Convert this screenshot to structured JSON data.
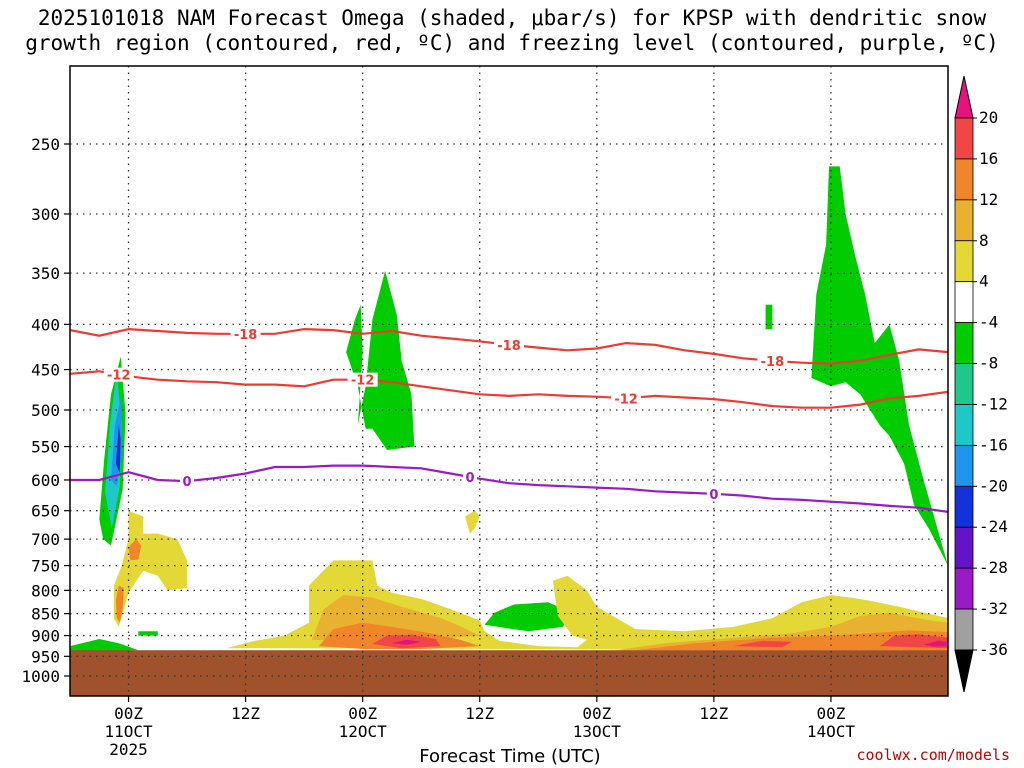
{
  "chart_data": {
    "type": "heatmap",
    "title_line1": "2025101018 NAM Forecast Omega (shaded, μbar/s) for KPSP with dendritic snow",
    "title_line2": "growth region (contoured, red, ºC) and freezing level (contoured, purple, ºC)",
    "xlabel": "Forecast Time (UTC)",
    "ylabel": "",
    "x_range_hours": [
      -6,
      84
    ],
    "x_ticks": [
      {
        "hour": 0,
        "l1": "00Z",
        "l2": "11OCT",
        "l3": "2025"
      },
      {
        "hour": 12,
        "l1": "12Z",
        "l2": "",
        "l3": ""
      },
      {
        "hour": 24,
        "l1": "00Z",
        "l2": "12OCT",
        "l3": ""
      },
      {
        "hour": 36,
        "l1": "12Z",
        "l2": "",
        "l3": ""
      },
      {
        "hour": 48,
        "l1": "00Z",
        "l2": "13OCT",
        "l3": ""
      },
      {
        "hour": 60,
        "l1": "12Z",
        "l2": "",
        "l3": ""
      },
      {
        "hour": 72,
        "l1": "00Z",
        "l2": "14OCT",
        "l3": ""
      }
    ],
    "y_ticks_hPa": [
      250,
      300,
      350,
      400,
      450,
      500,
      550,
      600,
      650,
      700,
      750,
      800,
      850,
      900,
      950,
      1000
    ],
    "surface_pressure_hPa": 935,
    "isotherms": [
      {
        "label": "-18",
        "color": "#ee3b2f",
        "hours": [
          -6,
          -3,
          0,
          3,
          6,
          9,
          12,
          15,
          18,
          21,
          24,
          27,
          30,
          33,
          36,
          39,
          42,
          45,
          48,
          51,
          54,
          57,
          60,
          63,
          66,
          69,
          72,
          75,
          78,
          81,
          84
        ],
        "pressure": [
          406,
          412,
          405,
          407,
          409,
          410,
          410,
          410,
          405,
          406,
          410,
          407,
          412,
          415,
          418,
          422,
          425,
          428,
          426,
          420,
          422,
          428,
          432,
          437,
          440,
          442,
          443,
          440,
          433,
          427,
          430
        ],
        "label_hours": [
          12,
          39,
          66
        ]
      },
      {
        "label": "-12",
        "color": "#ee3b2f",
        "hours": [
          -6,
          -3,
          0,
          3,
          6,
          9,
          12,
          15,
          18,
          21,
          24,
          27,
          30,
          33,
          36,
          39,
          42,
          45,
          48,
          51,
          54,
          57,
          60,
          63,
          66,
          69,
          72,
          75,
          78,
          81,
          84
        ],
        "pressure": [
          455,
          452,
          458,
          462,
          464,
          465,
          468,
          468,
          470,
          462,
          462,
          465,
          470,
          475,
          480,
          482,
          480,
          482,
          483,
          485,
          482,
          484,
          486,
          490,
          495,
          497,
          497,
          493,
          485,
          482,
          477
        ],
        "label_hours": [
          -1,
          24,
          51
        ]
      },
      {
        "label": "0",
        "color": "#9a1ac6",
        "hours": [
          -6,
          -3,
          0,
          3,
          6,
          9,
          12,
          15,
          18,
          21,
          24,
          27,
          30,
          33,
          36,
          39,
          42,
          45,
          48,
          51,
          54,
          57,
          60,
          63,
          66,
          69,
          72,
          75,
          78,
          81,
          84
        ],
        "pressure": [
          600,
          600,
          588,
          600,
          602,
          597,
          590,
          580,
          580,
          578,
          578,
          580,
          582,
          590,
          598,
          605,
          608,
          610,
          612,
          614,
          618,
          620,
          622,
          625,
          630,
          632,
          635,
          638,
          642,
          645,
          652
        ],
        "label_hours": [
          6,
          35,
          60
        ]
      }
    ],
    "omega_regions": [
      {
        "value": -6,
        "color": "#00cc00",
        "pts": [
          [
            -3,
            665
          ],
          [
            -2.5,
            570
          ],
          [
            -1.8,
            480
          ],
          [
            -0.8,
            435
          ],
          [
            -0.3,
            505
          ],
          [
            -0.6,
            615
          ],
          [
            -1.8,
            712
          ],
          [
            -2.6,
            700
          ]
        ]
      },
      {
        "value": -10,
        "color": "#1ec8c8",
        "pts": [
          [
            -2.4,
            620
          ],
          [
            -1.9,
            520
          ],
          [
            -1.2,
            452
          ],
          [
            -0.7,
            520
          ],
          [
            -0.9,
            610
          ],
          [
            -1.7,
            680
          ]
        ]
      },
      {
        "value": -14,
        "color": "#1e96f0",
        "pts": [
          [
            -1.8,
            600
          ],
          [
            -1.4,
            520
          ],
          [
            -0.8,
            485
          ],
          [
            -0.7,
            560
          ],
          [
            -1.2,
            610
          ]
        ]
      },
      {
        "value": -22,
        "color": "#1432dc",
        "pts": [
          [
            -1.3,
            575
          ],
          [
            -1.0,
            520
          ],
          [
            -0.8,
            540
          ],
          [
            -0.9,
            590
          ]
        ]
      },
      {
        "value": -6,
        "color": "#00cc00",
        "pts": [
          [
            22.3,
            430
          ],
          [
            23.2,
            395
          ],
          [
            23.8,
            380
          ],
          [
            24.0,
            430
          ],
          [
            23.5,
            520
          ],
          [
            24.3,
            470
          ],
          [
            25.0,
            395
          ],
          [
            26.3,
            348
          ],
          [
            27.5,
            390
          ],
          [
            28.0,
            440
          ],
          [
            29.0,
            480
          ],
          [
            29.3,
            550
          ],
          [
            26.5,
            555
          ],
          [
            25.0,
            525
          ],
          [
            24.3,
            525
          ],
          [
            23.5,
            470
          ]
        ]
      },
      {
        "value": -6,
        "color": "#00cc00",
        "pts": [
          [
            70.0,
            460
          ],
          [
            70.5,
            370
          ],
          [
            71.5,
            325
          ],
          [
            71.8,
            265
          ],
          [
            72.9,
            265
          ],
          [
            73.5,
            300
          ],
          [
            74.5,
            335
          ],
          [
            75.5,
            370
          ],
          [
            76.5,
            420
          ],
          [
            78.0,
            400
          ],
          [
            79.0,
            440
          ],
          [
            80.0,
            520
          ],
          [
            81.5,
            600
          ],
          [
            84.0,
            750
          ],
          [
            82.0,
            680
          ],
          [
            80.5,
            640
          ],
          [
            79.5,
            575
          ],
          [
            78.0,
            535
          ],
          [
            77.0,
            520
          ],
          [
            75.0,
            480
          ],
          [
            73.5,
            465
          ],
          [
            72.0,
            470
          ]
        ]
      },
      {
        "value": -6,
        "color": "#00cc00",
        "pts": [
          [
            65.3,
            380
          ],
          [
            66.0,
            380
          ],
          [
            66.0,
            405
          ],
          [
            65.3,
            405
          ]
        ]
      },
      {
        "value": -6,
        "color": "#00cc00",
        "pts": [
          [
            36.5,
            875
          ],
          [
            37.5,
            848
          ],
          [
            39.5,
            830
          ],
          [
            43.0,
            825
          ],
          [
            45.5,
            848
          ],
          [
            44.5,
            880
          ],
          [
            41.0,
            890
          ],
          [
            38.5,
            882
          ]
        ]
      },
      {
        "value": -6,
        "color": "#00cc00",
        "pts": [
          [
            -6,
            925
          ],
          [
            -3,
            908
          ],
          [
            -1,
            918
          ],
          [
            1,
            935
          ],
          [
            -6,
            940
          ]
        ]
      },
      {
        "value": -6,
        "color": "#00cc00",
        "pts": [
          [
            1,
            890
          ],
          [
            3,
            890
          ],
          [
            3,
            900
          ],
          [
            1,
            900
          ]
        ]
      },
      {
        "value": 6,
        "color": "#e4d836",
        "pts": [
          [
            -1.5,
            860
          ],
          [
            -1.5,
            790
          ],
          [
            -0.7,
            750
          ],
          [
            0.0,
            700
          ],
          [
            0.0,
            650
          ],
          [
            1.5,
            660
          ],
          [
            1.5,
            690
          ],
          [
            3.0,
            690
          ],
          [
            5.0,
            700
          ],
          [
            6.0,
            740
          ],
          [
            6.0,
            795
          ],
          [
            4.0,
            800
          ],
          [
            3.0,
            770
          ],
          [
            1.5,
            760
          ],
          [
            0.0,
            805
          ],
          [
            -1.0,
            880
          ]
        ]
      },
      {
        "value": 6,
        "color": "#e4d836",
        "pts": [
          [
            34.5,
            660
          ],
          [
            35.5,
            650
          ],
          [
            36.0,
            660
          ],
          [
            35.5,
            680
          ],
          [
            35.0,
            690
          ]
        ]
      },
      {
        "value": 6,
        "color": "#e4d836",
        "pts": [
          [
            10,
            930
          ],
          [
            13,
            912
          ],
          [
            16,
            900
          ],
          [
            18.5,
            870
          ],
          [
            18.5,
            790
          ],
          [
            21.0,
            740
          ],
          [
            25.0,
            740
          ],
          [
            25.5,
            790
          ],
          [
            27.0,
            805
          ],
          [
            30.0,
            818
          ],
          [
            33.0,
            840
          ],
          [
            36.0,
            865
          ],
          [
            36.5,
            890
          ],
          [
            38.0,
            912
          ],
          [
            42.0,
            925
          ],
          [
            46.0,
            928
          ],
          [
            47.0,
            910
          ],
          [
            45.5,
            900
          ],
          [
            44.0,
            855
          ],
          [
            43.5,
            780
          ],
          [
            45.0,
            770
          ],
          [
            47.0,
            800
          ],
          [
            48.0,
            835
          ],
          [
            50.0,
            860
          ],
          [
            52.0,
            885
          ],
          [
            57.0,
            890
          ],
          [
            62.0,
            880
          ],
          [
            66.0,
            860
          ],
          [
            69.0,
            825
          ],
          [
            72.0,
            810
          ],
          [
            74.0,
            815
          ],
          [
            76.0,
            822
          ],
          [
            79.0,
            835
          ],
          [
            82.0,
            850
          ],
          [
            84.0,
            860
          ],
          [
            84.0,
            935
          ]
        ]
      },
      {
        "value": 10,
        "color": "#e8b230",
        "pts": [
          [
            18.8,
            910
          ],
          [
            20.0,
            840
          ],
          [
            22.0,
            810
          ],
          [
            25.0,
            815
          ],
          [
            28.0,
            835
          ],
          [
            32.0,
            860
          ],
          [
            34.0,
            878
          ],
          [
            36.0,
            900
          ],
          [
            30.0,
            910
          ],
          [
            24.0,
            915
          ]
        ]
      },
      {
        "value": 10,
        "color": "#e8b230",
        "pts": [
          [
            50.0,
            935
          ],
          [
            55.0,
            918
          ],
          [
            62.0,
            905
          ],
          [
            68.0,
            895
          ],
          [
            72.0,
            880
          ],
          [
            75.0,
            855
          ],
          [
            78.0,
            848
          ],
          [
            82.0,
            865
          ],
          [
            84.0,
            870
          ],
          [
            84.0,
            935
          ]
        ]
      },
      {
        "value": 14,
        "color": "#f0852a",
        "pts": [
          [
            -1.2,
            860
          ],
          [
            -1.3,
            820
          ],
          [
            -1.0,
            790
          ],
          [
            -0.5,
            795
          ],
          [
            -0.6,
            840
          ],
          [
            -0.9,
            870
          ]
        ]
      },
      {
        "value": 14,
        "color": "#f0852a",
        "pts": [
          [
            0.0,
            715
          ],
          [
            0.8,
            700
          ],
          [
            1.3,
            712
          ],
          [
            1.0,
            738
          ],
          [
            0.2,
            740
          ]
        ]
      },
      {
        "value": 14,
        "color": "#f0852a",
        "pts": [
          [
            19.5,
            925
          ],
          [
            21.0,
            885
          ],
          [
            24.0,
            870
          ],
          [
            27.0,
            880
          ],
          [
            31.0,
            895
          ],
          [
            34.0,
            910
          ],
          [
            36.0,
            925
          ],
          [
            30.0,
            932
          ],
          [
            24.0,
            932
          ]
        ]
      },
      {
        "value": 14,
        "color": "#f0852a",
        "pts": [
          [
            52.0,
            935
          ],
          [
            58.0,
            918
          ],
          [
            66.0,
            905
          ],
          [
            72.0,
            900
          ],
          [
            76.0,
            895
          ],
          [
            80.0,
            888
          ],
          [
            84.0,
            892
          ],
          [
            84.0,
            935
          ]
        ]
      },
      {
        "value": 18,
        "color": "#f04646",
        "pts": [
          [
            25.0,
            920
          ],
          [
            26.5,
            900
          ],
          [
            29.0,
            898
          ],
          [
            31.5,
            908
          ],
          [
            32.0,
            925
          ],
          [
            28.0,
            930
          ]
        ]
      },
      {
        "value": 18,
        "color": "#f04646",
        "pts": [
          [
            62.0,
            925
          ],
          [
            65.0,
            912
          ],
          [
            68.0,
            915
          ],
          [
            67.0,
            928
          ]
        ]
      },
      {
        "value": 18,
        "color": "#f04646",
        "pts": [
          [
            77.0,
            925
          ],
          [
            78.5,
            900
          ],
          [
            81.0,
            897
          ],
          [
            84.0,
            905
          ],
          [
            84.0,
            930
          ]
        ]
      },
      {
        "value": 22,
        "color": "#e8127f",
        "pts": [
          [
            27.0,
            918
          ],
          [
            28.5,
            910
          ],
          [
            30.0,
            915
          ],
          [
            28.5,
            922
          ]
        ]
      },
      {
        "value": 22,
        "color": "#e8127f",
        "pts": [
          [
            81.5,
            922
          ],
          [
            83.0,
            912
          ],
          [
            84.0,
            915
          ],
          [
            84.0,
            925
          ],
          [
            82.5,
            926
          ]
        ]
      }
    ],
    "colorbar": {
      "labels": [
        "20",
        "16",
        "12",
        "8",
        "4",
        "-4",
        "-8",
        "-12",
        "-16",
        "-20",
        "-24",
        "-28",
        "-32",
        "-36"
      ],
      "colors": [
        "#f04646",
        "#f0852a",
        "#e8b230",
        "#e4d836",
        "#ffffff",
        "#00cc00",
        "#1ec88c",
        "#1ec8c8",
        "#1e96f0",
        "#1432dc",
        "#6414c8",
        "#9a1ac6",
        "#a0a0a0"
      ],
      "top_color": "#e8127f",
      "bottom_color": "#000000"
    },
    "credit": "coolwx.com/models"
  },
  "colors": {
    "ground": "#a0522d",
    "grid": "#333333"
  }
}
